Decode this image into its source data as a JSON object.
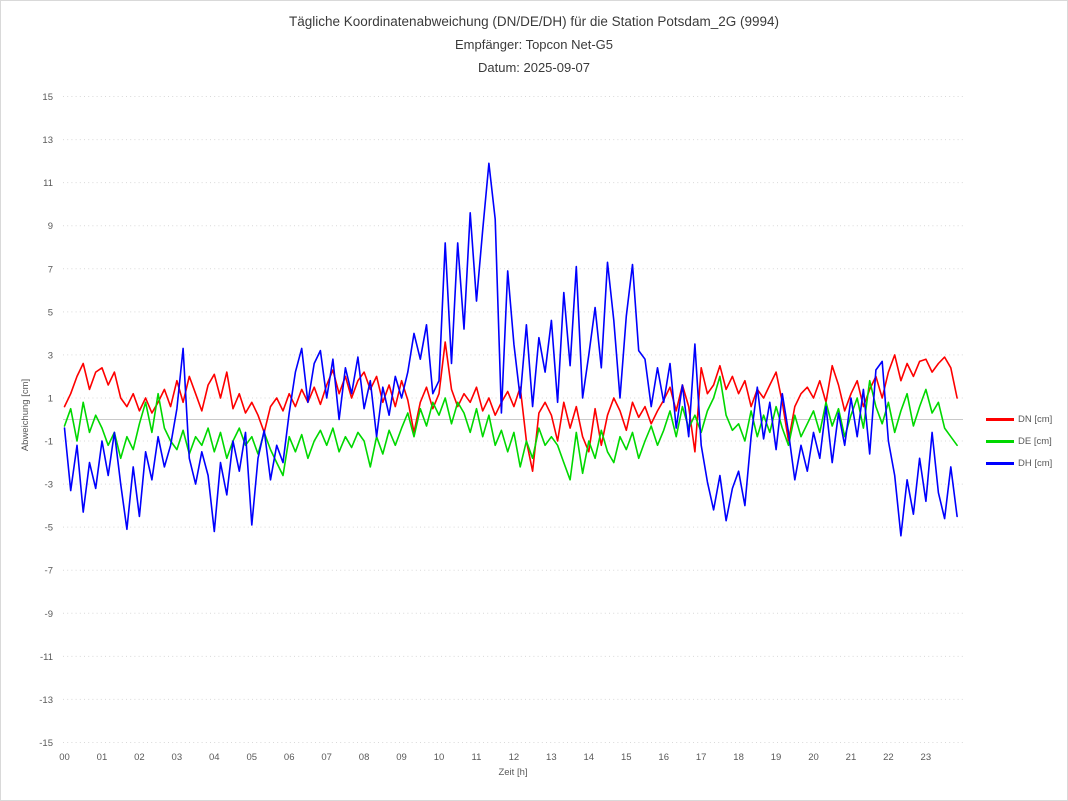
{
  "colors": {
    "dn": "#fe0000",
    "de": "#00d800",
    "dh": "#0000fe",
    "grid": "#d9d9d9",
    "zero_line": "#c9c9c9",
    "tick_text": "#595959",
    "title_text": "#3a3a3a",
    "border": "#d9d9d9",
    "background": "#ffffff"
  },
  "chart_data": {
    "type": "line",
    "title": "Tägliche Koordinatenabweichung (DN/DE/DH) für die Station Potsdam_2G (9994)",
    "subtitle_receiver": "Empfänger: Topcon Net-G5",
    "subtitle_date": "Datum: 2025-09-07",
    "xlabel": "Zeit [h]",
    "ylabel": "Abweichung [cm]",
    "xlim": [
      0,
      24
    ],
    "ylim": [
      -15,
      15
    ],
    "grid": "horizontal dotted lines every 2 cm, solid light line at 0",
    "legend_position": "right of plot, vertically centered",
    "y_ticks": [
      15,
      13,
      11,
      9,
      7,
      5,
      3,
      1,
      -1,
      -3,
      -5,
      -7,
      -9,
      -11,
      -13,
      -15
    ],
    "x_tick_labels": [
      "00",
      "01",
      "02",
      "03",
      "04",
      "05",
      "06",
      "07",
      "08",
      "09",
      "10",
      "11",
      "12",
      "13",
      "14",
      "15",
      "16",
      "17",
      "18",
      "19",
      "20",
      "21",
      "22",
      "23"
    ],
    "x_start_hour": 0,
    "x_step_hours": 0.16667,
    "n_points": 144,
    "series": [
      {
        "name": "DN [cm]",
        "color": "#fe0000",
        "values": [
          0.6,
          1.2,
          2.0,
          2.6,
          1.4,
          2.2,
          2.4,
          1.6,
          2.2,
          1.0,
          0.6,
          1.2,
          0.4,
          1.0,
          0.3,
          0.8,
          1.4,
          0.6,
          1.8,
          0.8,
          2.0,
          1.2,
          0.4,
          1.6,
          2.1,
          1.0,
          2.2,
          0.5,
          1.2,
          0.3,
          0.8,
          0.2,
          -0.6,
          0.6,
          1.0,
          0.4,
          1.2,
          0.6,
          1.4,
          0.8,
          1.5,
          0.7,
          1.6,
          2.3,
          1.2,
          2.0,
          1.0,
          1.8,
          2.2,
          1.4,
          2.0,
          0.8,
          1.6,
          0.6,
          1.8,
          0.9,
          -0.6,
          0.8,
          1.5,
          0.5,
          1.2,
          3.6,
          1.4,
          0.6,
          1.2,
          0.8,
          1.5,
          0.4,
          1.0,
          0.2,
          0.8,
          1.3,
          0.6,
          1.5,
          -1.0,
          -2.4,
          0.3,
          0.8,
          0.2,
          -1.0,
          0.8,
          -0.4,
          0.6,
          -0.8,
          -1.5,
          0.5,
          -1.2,
          0.2,
          1.0,
          0.4,
          -0.5,
          0.8,
          0.1,
          0.6,
          -0.2,
          0.4,
          0.9,
          1.5,
          0.4,
          1.6,
          0.6,
          -1.5,
          2.4,
          1.2,
          1.6,
          2.5,
          1.4,
          2.0,
          1.2,
          1.8,
          0.6,
          1.4,
          1.0,
          1.6,
          2.2,
          0.8,
          -1.0,
          0.6,
          1.2,
          1.5,
          1.0,
          1.8,
          0.8,
          2.5,
          1.6,
          0.4,
          1.2,
          1.8,
          0.6,
          1.4,
          2.0,
          1.0,
          2.2,
          3.0,
          1.8,
          2.6,
          2.0,
          2.7,
          2.8,
          2.2,
          2.6,
          2.9,
          2.4,
          1.0
        ]
      },
      {
        "name": "DE [cm]",
        "color": "#00d800",
        "values": [
          -0.3,
          0.5,
          -1.0,
          0.8,
          -0.6,
          0.2,
          -0.4,
          -1.2,
          -0.6,
          -1.8,
          -0.8,
          -1.4,
          -0.2,
          0.8,
          -0.6,
          1.2,
          -0.4,
          -1.0,
          -1.4,
          -0.5,
          -1.6,
          -0.8,
          -1.2,
          -0.4,
          -1.5,
          -0.6,
          -1.8,
          -1.0,
          -0.4,
          -1.2,
          -0.8,
          -1.6,
          -0.6,
          -1.4,
          -2.0,
          -2.6,
          -0.8,
          -1.5,
          -0.7,
          -1.8,
          -1.0,
          -0.5,
          -1.2,
          -0.4,
          -1.5,
          -0.8,
          -1.3,
          -0.6,
          -1.0,
          -2.2,
          -0.8,
          -1.6,
          -0.5,
          -1.2,
          -0.4,
          0.3,
          -0.8,
          0.5,
          -0.3,
          0.8,
          0.2,
          1.0,
          -0.2,
          0.8,
          0.3,
          -0.6,
          0.5,
          -0.8,
          0.2,
          -1.2,
          -0.5,
          -1.5,
          -0.6,
          -2.2,
          -1.0,
          -1.8,
          -0.4,
          -1.2,
          -0.8,
          -1.2,
          -2.0,
          -2.8,
          -0.6,
          -2.5,
          -1.0,
          -1.8,
          -0.5,
          -1.5,
          -2.0,
          -0.8,
          -1.4,
          -0.6,
          -1.8,
          -1.0,
          -0.3,
          -1.2,
          -0.5,
          0.4,
          -0.8,
          0.6,
          -0.4,
          0.2,
          -0.6,
          0.4,
          1.0,
          2.0,
          0.2,
          -0.5,
          -0.2,
          -1.0,
          0.4,
          -0.8,
          0.2,
          -0.6,
          0.6,
          -0.4,
          -1.2,
          0.2,
          -0.8,
          -0.2,
          0.4,
          -0.6,
          0.8,
          -0.3,
          0.5,
          -0.8,
          0.2,
          1.0,
          -0.4,
          1.8,
          0.6,
          -0.2,
          0.8,
          -0.6,
          0.4,
          1.2,
          -0.3,
          0.6,
          1.4,
          0.3,
          0.8,
          -0.4,
          -0.8,
          -1.2
        ]
      },
      {
        "name": "DH [cm]",
        "color": "#0000fe",
        "values": [
          -0.4,
          -3.3,
          -1.2,
          -4.3,
          -2.0,
          -3.2,
          -1.0,
          -2.6,
          -0.6,
          -3.0,
          -5.1,
          -2.2,
          -4.5,
          -1.5,
          -2.8,
          -0.8,
          -2.2,
          -1.2,
          0.5,
          3.3,
          -1.8,
          -3.0,
          -1.5,
          -2.6,
          -5.2,
          -2.0,
          -3.5,
          -1.0,
          -2.4,
          -0.6,
          -4.9,
          -1.8,
          -0.5,
          -2.8,
          -1.2,
          -2.0,
          0.3,
          2.2,
          3.3,
          0.8,
          2.6,
          3.2,
          1.0,
          2.8,
          0.0,
          2.4,
          1.2,
          2.9,
          0.5,
          1.8,
          -0.8,
          1.5,
          0.2,
          2.0,
          1.0,
          2.2,
          4.0,
          2.8,
          4.4,
          1.2,
          1.8,
          8.2,
          2.6,
          8.2,
          4.2,
          9.6,
          5.5,
          8.8,
          11.9,
          9.3,
          0.3,
          6.9,
          3.5,
          1.0,
          4.4,
          0.6,
          3.8,
          2.2,
          4.6,
          0.8,
          5.9,
          2.5,
          7.1,
          1.0,
          3.0,
          5.2,
          2.4,
          7.3,
          4.6,
          1.0,
          4.8,
          7.2,
          3.2,
          2.8,
          0.6,
          2.4,
          0.8,
          2.6,
          -0.4,
          1.6,
          -0.8,
          3.5,
          -1.2,
          -2.9,
          -4.2,
          -2.6,
          -4.7,
          -3.2,
          -2.4,
          -4.0,
          -0.8,
          1.5,
          -0.9,
          0.8,
          -1.4,
          1.2,
          -0.6,
          -2.8,
          -1.2,
          -2.4,
          -0.6,
          -1.8,
          0.6,
          -2.0,
          0.3,
          -1.2,
          1.0,
          -0.8,
          1.4,
          -1.6,
          2.3,
          2.7,
          -1.0,
          -2.6,
          -5.4,
          -2.8,
          -4.4,
          -1.8,
          -3.8,
          -0.6,
          -3.4,
          -4.6,
          -2.2,
          -4.5
        ]
      }
    ]
  }
}
